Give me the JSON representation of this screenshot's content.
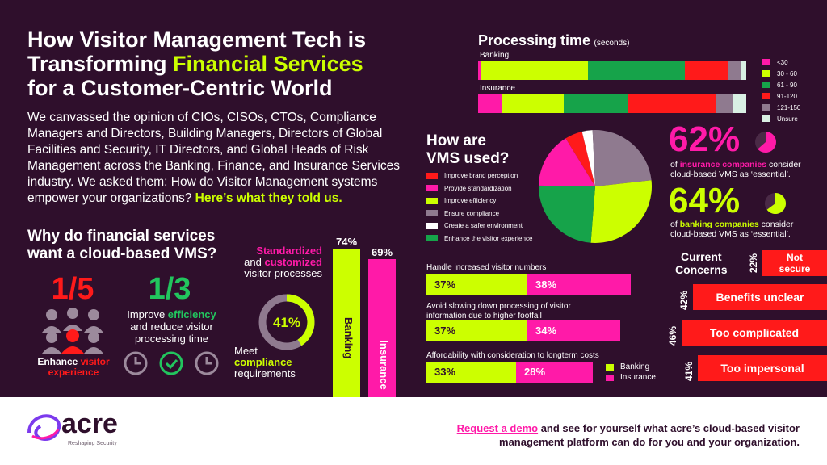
{
  "title": {
    "line1": "How Visitor Management Tech is",
    "line2_a": "Transforming ",
    "line2_b": "Financial Services",
    "line3": "for a Customer-Centric World"
  },
  "intro": {
    "text": "We canvassed the opinion of CIOs, CISOs, CTOs, Compliance Managers and Directors, Building Managers, Directors of Global Facilities and Security, IT Directors, and Global Heads of Risk Management across the Banking, Finance, and Insurance Services industry. We asked them: How do Visitor Management systems empower your organizations? ",
    "highlight": "Here’s what they told us."
  },
  "why": {
    "heading_line1": "Why do financial services",
    "heading_line2": "want a cloud-based VMS?",
    "stat1_value": "1/5",
    "stat1_label_a": "Enhance ",
    "stat1_label_b": "visitor",
    "stat1_label_c": "experience",
    "stat2_value": "1/3",
    "stat2_label_a": "Improve ",
    "stat2_label_b": "efficiency",
    "stat2_label_c": "and reduce visitor",
    "stat2_label_d": "processing time",
    "standardized_a": "Standardized",
    "standardized_b": "and ",
    "standardized_c": "customized",
    "standardized_d": "visitor processes",
    "compliance_value": "41%",
    "compliance_a": "Meet",
    "compliance_b": "compliance",
    "compliance_c": "requirements",
    "banking_pct": "74%",
    "banking_label": "Banking",
    "insurance_pct": "69%",
    "insurance_label": "Insurance"
  },
  "processing": {
    "title": "Processing time",
    "unit": "(seconds)",
    "row1_label": "Banking",
    "row2_label": "Insurance",
    "legend": [
      "<30",
      "30 - 60",
      "61 - 90",
      "91-120",
      "121-150",
      "Unsure"
    ],
    "colors": [
      "#ff1aa8",
      "#ccff00",
      "#16a34a",
      "#ff1a1a",
      "#8f7a8f",
      "#d9f0e4"
    ],
    "banking": [
      0.01,
      0.4,
      0.36,
      0.16,
      0.05,
      0.02
    ],
    "insurance": [
      0.09,
      0.23,
      0.24,
      0.33,
      0.06,
      0.05
    ]
  },
  "vms": {
    "heading_line1": "How are",
    "heading_line2": "VMS used?",
    "legend": [
      "Improve brand perception",
      "Provide standardization",
      "Improve efficiency",
      "Ensure compliance",
      "Create a safer environment",
      "Enhance the visitor experience"
    ],
    "colors": [
      "#ff1a1a",
      "#ff1aa8",
      "#ccff00",
      "#8f7a8f",
      "#ffffff",
      "#16a34a"
    ],
    "slices": [
      0.05,
      0.16,
      0.28,
      0.24,
      0.03,
      0.24
    ]
  },
  "stats": {
    "insurance_value": "62%",
    "insurance_text_a": "of ",
    "insurance_text_b": "insurance companies",
    "insurance_text_c": " consider",
    "insurance_text_d": "cloud-based VMS as ‘essential’.",
    "banking_value": "64%",
    "banking_text_a": "of ",
    "banking_text_b": "banking companies",
    "banking_text_c": " consider",
    "banking_text_d": "cloud-based VMS as ‘essential’."
  },
  "hbars": {
    "q1": "Handle increased visitor numbers",
    "q1_bank": "37%",
    "q1_ins": "38%",
    "q2_line1": "Avoid slowing down processing of visitor",
    "q2_line2": "information due to higher footfall",
    "q2_bank": "37%",
    "q2_ins": "34%",
    "q3": "Affordability with consideration to longterm costs",
    "q3_bank": "33%",
    "q3_ins": "28%",
    "legend_bank": "Banking",
    "legend_ins": "Insurance"
  },
  "concerns": {
    "heading_line1": "Current",
    "heading_line2": "Concerns",
    "c1_pct": "22%",
    "c1_line1": "Not",
    "c1_line2": "secure",
    "c2_pct": "42%",
    "c2_label": "Benefits unclear",
    "c3_pct": "46%",
    "c3_label": "Too complicated",
    "c4_pct": "41%",
    "c4_label": "Too impersonal"
  },
  "footer": {
    "logo": "acre",
    "tagline": "Reshaping Security",
    "cta_link": "Request a demo",
    "cta_rest": " and see for yourself what acre’s cloud-based visitor",
    "cta_line2": "management platform can do for you and your organization."
  }
}
